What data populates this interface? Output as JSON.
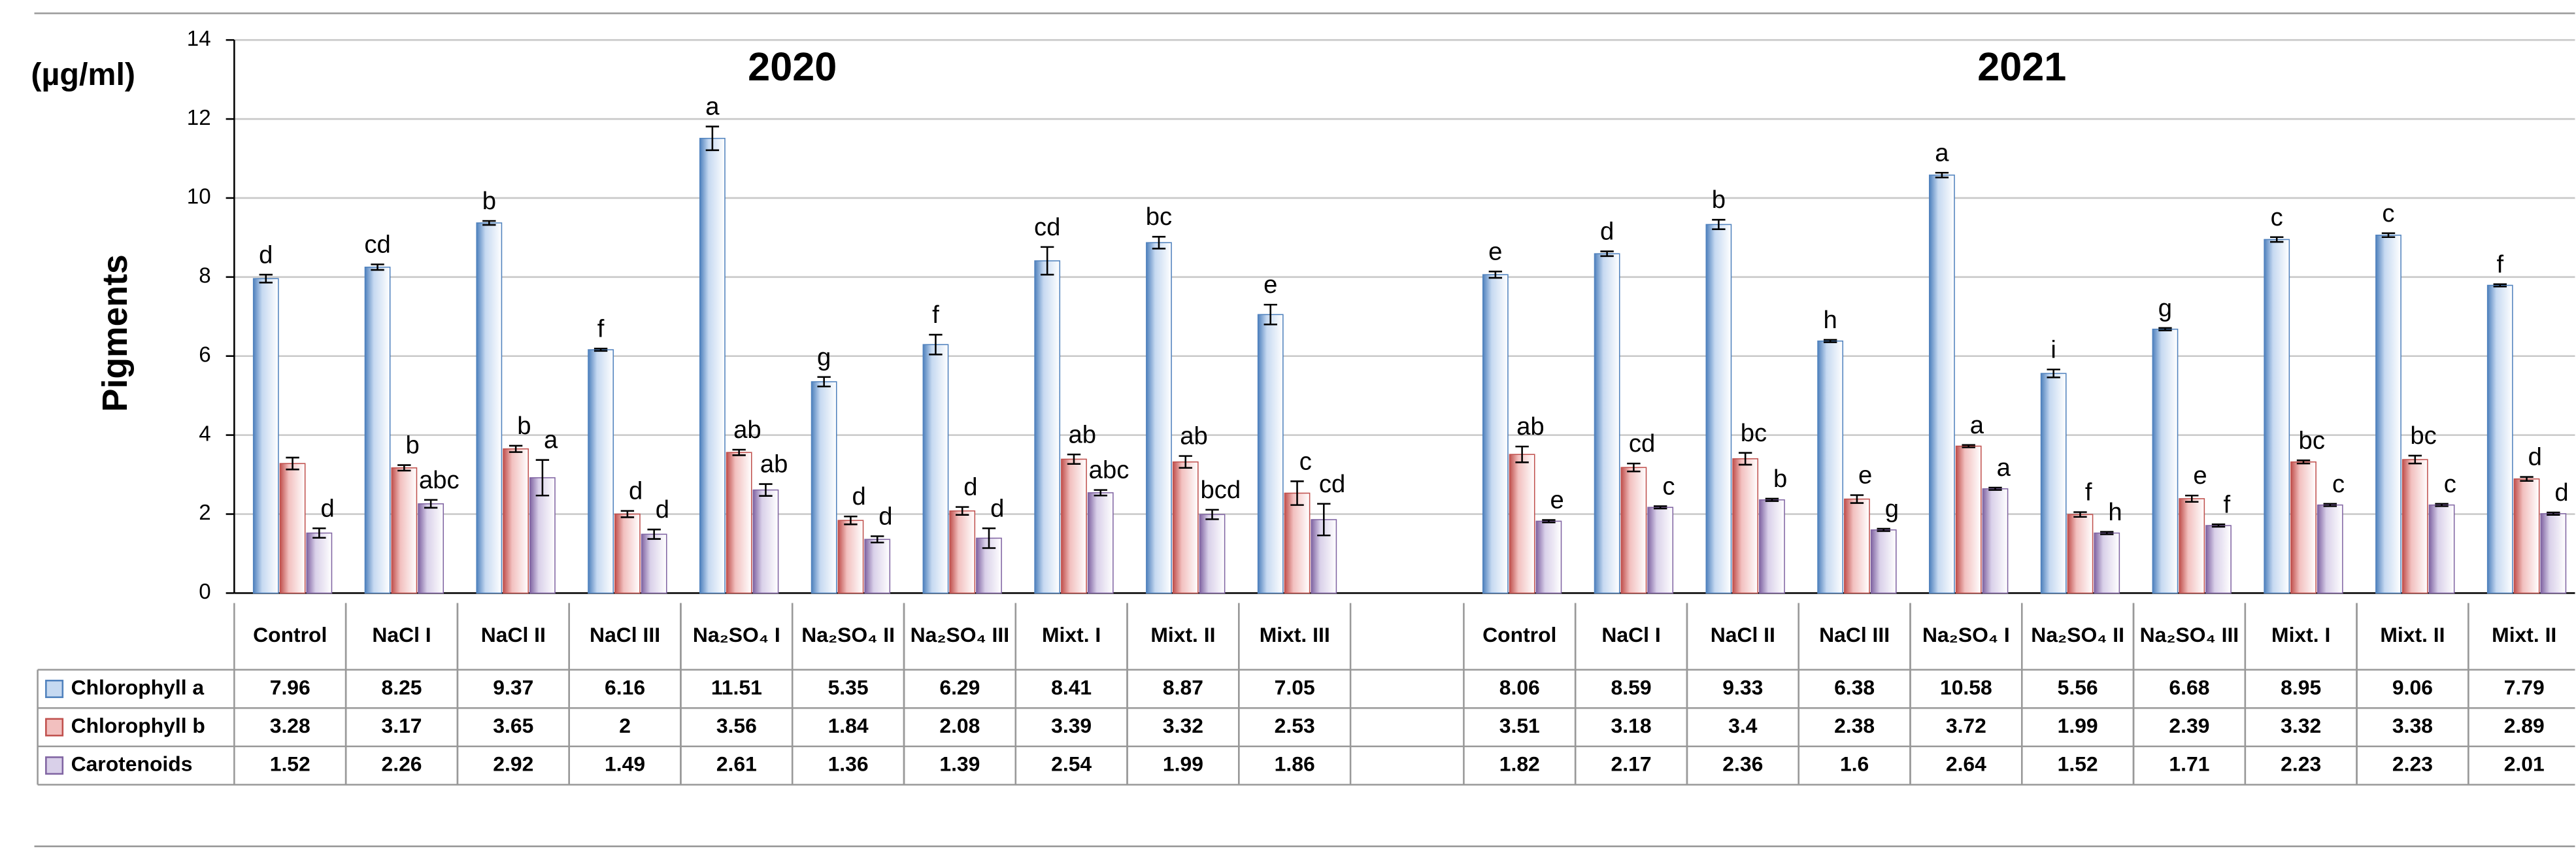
{
  "chart_data": {
    "type": "bar",
    "unit_label": "(µg/ml)",
    "y_label": "Pigments",
    "group_titles": [
      "2020",
      "2021"
    ],
    "categories": [
      "Control",
      "NaCl I",
      "NaCl II",
      "NaCl III",
      "Na₂SO₄ I",
      "Na₂SO₄ II",
      "Na₂SO₄ III",
      "Mixt. I",
      "Mixt. II",
      "Mixt. III",
      "Control",
      "NaCl I",
      "NaCl II",
      "NaCl III",
      "Na₂SO₄ I",
      "Na₂SO₄ II",
      "Na₂SO₄ III",
      "Mixt. I",
      "Mixt. II",
      "Mixt. II"
    ],
    "ylim": [
      0,
      14
    ],
    "yticks": [
      0,
      2,
      4,
      6,
      8,
      10,
      12,
      14
    ],
    "grid": true,
    "series": [
      {
        "name": "Chlorophyll a",
        "color": "#c6d9f1",
        "edge": "#4f81bd",
        "values": [
          7.96,
          8.25,
          9.37,
          6.16,
          11.51,
          5.35,
          6.29,
          8.41,
          8.87,
          7.05,
          8.06,
          8.59,
          9.33,
          6.38,
          10.58,
          5.56,
          6.68,
          8.95,
          9.06,
          7.79
        ],
        "errors": [
          0.1,
          0.07,
          0.05,
          0.03,
          0.3,
          0.12,
          0.25,
          0.35,
          0.15,
          0.25,
          0.08,
          0.06,
          0.12,
          0.03,
          0.06,
          0.1,
          0.03,
          0.06,
          0.05,
          0.03
        ],
        "letters": [
          "d",
          "cd",
          "b",
          "f",
          "a",
          "g",
          "f",
          "cd",
          "bc",
          "e",
          "e",
          "d",
          "b",
          "h",
          "a",
          "i",
          "g",
          "c",
          "c",
          "f"
        ]
      },
      {
        "name": "Chlorophyll b",
        "color": "#f2c0bf",
        "edge": "#c0504d",
        "values": [
          3.28,
          3.17,
          3.65,
          2,
          3.56,
          1.84,
          2.08,
          3.39,
          3.32,
          2.53,
          3.51,
          3.18,
          3.4,
          2.38,
          3.72,
          1.99,
          2.39,
          3.32,
          3.38,
          2.89
        ],
        "errors": [
          0.15,
          0.07,
          0.08,
          0.08,
          0.07,
          0.1,
          0.1,
          0.12,
          0.15,
          0.3,
          0.2,
          0.1,
          0.15,
          0.1,
          0.03,
          0.06,
          0.08,
          0.04,
          0.1,
          0.05
        ],
        "letters": [
          null,
          "b",
          "b",
          "d",
          "ab",
          "d",
          "d",
          "ab",
          "ab",
          "c",
          "ab",
          "cd",
          "bc",
          "e",
          "a",
          "f",
          "e",
          "bc",
          "bc",
          "d"
        ]
      },
      {
        "name": "Carotenoids",
        "color": "#d9d0e9",
        "edge": "#8064a2",
        "values": [
          1.52,
          2.26,
          2.92,
          1.49,
          2.61,
          1.36,
          1.39,
          2.54,
          1.99,
          1.86,
          1.82,
          2.17,
          2.36,
          1.6,
          2.64,
          1.52,
          1.71,
          2.23,
          2.23,
          2.01
        ],
        "errors": [
          0.12,
          0.1,
          0.45,
          0.12,
          0.15,
          0.08,
          0.25,
          0.07,
          0.12,
          0.4,
          0.03,
          0.03,
          0.03,
          0.03,
          0.03,
          0.03,
          0.03,
          0.03,
          0.03,
          0.03
        ],
        "letters": [
          "d",
          "abc",
          "a",
          "d",
          "ab",
          "d",
          "d",
          "abc",
          "bcd",
          "cd",
          "e",
          "c",
          "b",
          "g",
          "a",
          "h",
          "f",
          "c",
          "c",
          "d"
        ]
      }
    ]
  }
}
